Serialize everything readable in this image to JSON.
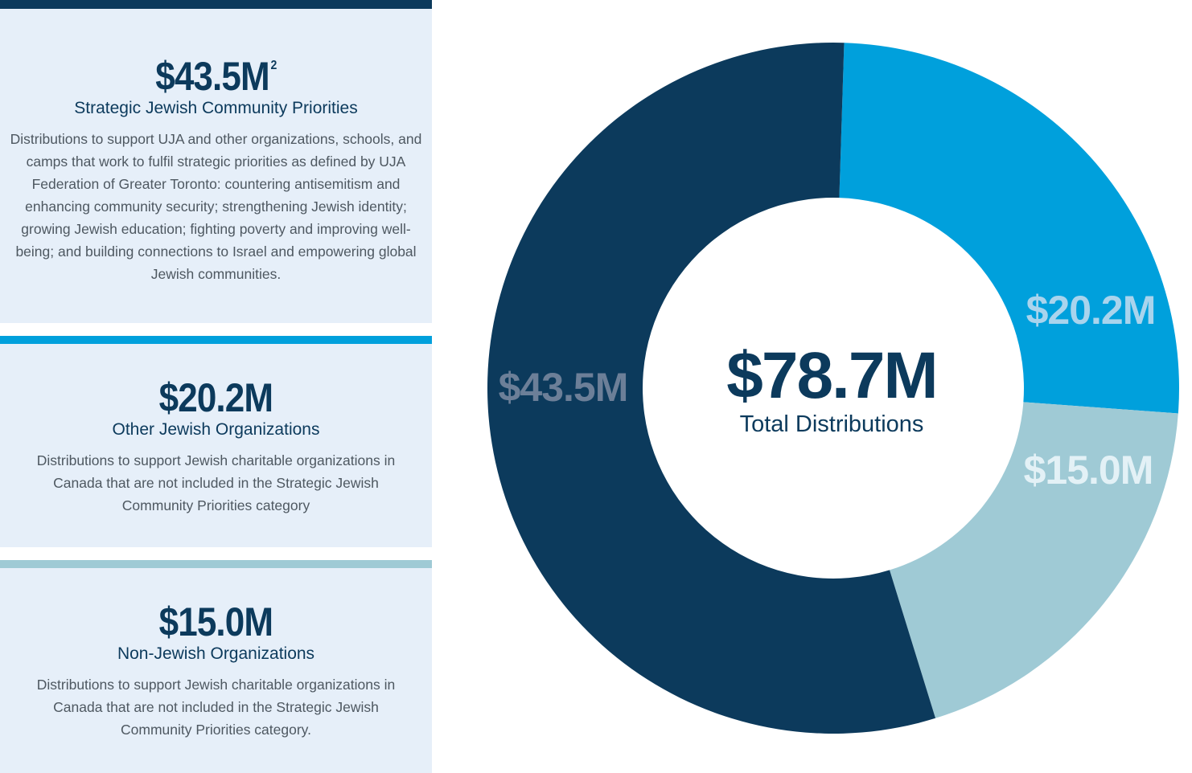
{
  "panels": [
    {
      "amount": "$43.5M",
      "footnote": "2",
      "title": "Strategic Jewish Community Priorities",
      "description": "Distributions to support UJA and other organizations, schools, and camps that work to fulfil strategic priorities as defined by UJA Federation of Greater Toronto: countering antisemitism and enhancing community security; strengthening Jewish identity; growing Jewish education; fighting poverty and improving well-being; and building connections to Israel and empowering global Jewish communities.",
      "accent_color": "#0c3a5c"
    },
    {
      "amount": "$20.2M",
      "title": "Other Jewish Organizations",
      "description": "Distributions to support Jewish charitable organizations in Canada that are not included in the Strategic Jewish Community Priorities category",
      "accent_color": "#00a0dc"
    },
    {
      "amount": "$15.0M",
      "title": "Non-Jewish Organizations",
      "description": "Distributions to support Jewish charitable organizations in Canada that are not included in the Strategic Jewish Community Priorities category.",
      "accent_color": "#9fcad5"
    }
  ],
  "chart_data": {
    "type": "pie",
    "donut": true,
    "center_total": "$78.7M",
    "center_caption": "Total Distributions",
    "slices": [
      {
        "category": "Other Jewish Organizations",
        "value": 20.2,
        "label": "$20.2M",
        "color": "#00a0dc",
        "label_color": "#a9d4ed"
      },
      {
        "category": "Non-Jewish Organizations",
        "value": 15.0,
        "label": "$15.0M",
        "color": "#9fcad5",
        "label_color": "#e3f1f6"
      },
      {
        "category": "Strategic Jewish Community Priorities",
        "value": 43.5,
        "label": "$43.5M",
        "color": "#0c3a5c",
        "label_color": "#6c7f98"
      }
    ]
  }
}
